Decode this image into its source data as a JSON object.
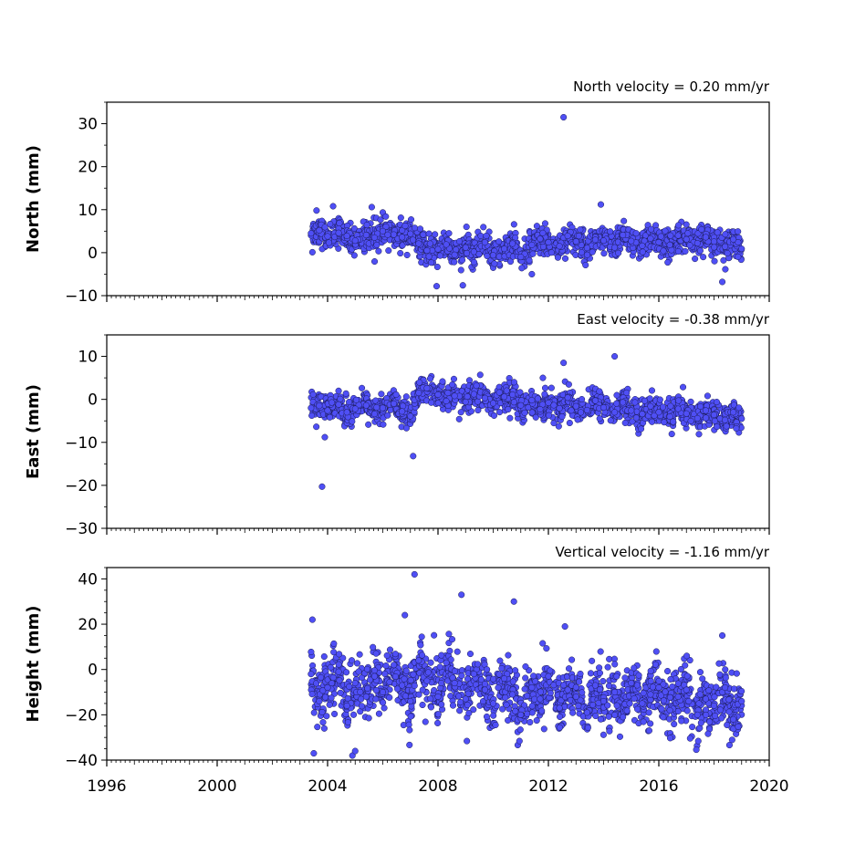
{
  "chart_data": [
    {
      "type": "scatter",
      "title": "North velocity = 0.20 mm/yr",
      "xlabel": "",
      "ylabel": "North (mm)",
      "xlim": [
        1996,
        2020
      ],
      "ylim": [
        -10,
        35
      ],
      "yticks": [
        -10,
        0,
        10,
        20,
        30
      ],
      "ytick_labels": [
        "−10",
        "0",
        "10",
        "20",
        "30"
      ],
      "series": [
        {
          "x": [
            2003.4,
            2003.7,
            2004.0,
            2004.4,
            2004.7,
            2005.0,
            2005.4,
            2005.7,
            2006.0,
            2006.4,
            2006.7,
            2007.0,
            2007.3,
            2007.6,
            2008.0,
            2008.3,
            2008.6,
            2009.0,
            2009.3,
            2009.7,
            2010.0,
            2010.4,
            2010.7,
            2011.0,
            2011.4,
            2011.7,
            2012.0,
            2012.4,
            2012.7,
            2013.0,
            2013.4,
            2013.7,
            2014.0,
            2014.4,
            2014.7,
            2015.0,
            2015.4,
            2015.7,
            2016.0,
            2016.4,
            2016.7,
            2017.0,
            2017.4,
            2017.7,
            2018.0,
            2018.4,
            2018.7,
            2019.0,
            2012.55,
            2013.9,
            2007.95,
            2008.9,
            2018.3,
            2003.6,
            2005.6,
            2011.4,
            2003.45,
            2004.2
          ],
          "y": [
            4.5,
            5.2,
            3.8,
            4.6,
            3.9,
            2.8,
            4.1,
            3.5,
            5.0,
            4.2,
            3.6,
            4.4,
            2.1,
            0.5,
            0.8,
            1.9,
            -0.5,
            1.2,
            0.2,
            2.4,
            -0.6,
            0.9,
            2.1,
            -1.0,
            1.8,
            3.2,
            2.4,
            1.5,
            3.9,
            2.6,
            1.1,
            3.0,
            2.8,
            1.2,
            4.1,
            2.7,
            1.6,
            3.3,
            2.4,
            1.8,
            4.0,
            3.1,
            2.2,
            3.6,
            2.6,
            1.4,
            3.1,
            0.9,
            31.5,
            11.2,
            -7.8,
            -7.6,
            -6.8,
            9.8,
            10.6,
            -5.0,
            0.1,
            10.8
          ]
        }
      ]
    },
    {
      "type": "scatter",
      "title": "East velocity = -0.38 mm/yr",
      "xlabel": "",
      "ylabel": "East (mm)",
      "xlim": [
        1996,
        2020
      ],
      "ylim": [
        -30,
        15
      ],
      "yticks": [
        -30,
        -20,
        -10,
        0,
        10
      ],
      "ytick_labels": [
        "−30",
        "−20",
        "−10",
        "0",
        "10"
      ],
      "series": [
        {
          "x": [
            2003.4,
            2003.7,
            2004.0,
            2004.4,
            2004.7,
            2005.0,
            2005.4,
            2005.7,
            2006.0,
            2006.4,
            2006.7,
            2007.0,
            2007.3,
            2007.6,
            2008.0,
            2008.3,
            2008.6,
            2009.0,
            2009.3,
            2009.7,
            2010.0,
            2010.4,
            2010.7,
            2011.0,
            2011.4,
            2011.7,
            2012.0,
            2012.4,
            2012.7,
            2013.0,
            2013.4,
            2013.7,
            2014.0,
            2014.4,
            2014.7,
            2015.0,
            2015.4,
            2015.7,
            2016.0,
            2016.4,
            2016.7,
            2017.0,
            2017.4,
            2017.7,
            2018.0,
            2018.4,
            2018.7,
            2019.0,
            2003.8,
            2007.1,
            2014.4,
            2012.55,
            2011.8,
            2003.9
          ],
          "y": [
            -2.0,
            -1.5,
            -2.6,
            -1.2,
            -3.0,
            -2.2,
            -1.4,
            -3.4,
            -2.0,
            -1.0,
            -2.8,
            -3.9,
            1.5,
            2.6,
            1.1,
            -0.4,
            0.8,
            -0.6,
            1.2,
            0.3,
            -0.9,
            0.6,
            1.1,
            -1.4,
            -0.2,
            -2.3,
            -0.8,
            -2.1,
            0.4,
            -1.6,
            -2.5,
            -0.3,
            -1.9,
            -3.0,
            -0.7,
            -2.6,
            -3.4,
            -1.6,
            -3.0,
            -4.0,
            -2.2,
            -3.3,
            -4.4,
            -2.6,
            -3.6,
            -4.8,
            -3.0,
            -4.5,
            -20.3,
            -13.2,
            10.0,
            8.5,
            5.0,
            -8.8
          ]
        }
      ]
    },
    {
      "type": "scatter",
      "title": "Vertical velocity = -1.16 mm/yr",
      "xlabel": "",
      "ylabel": "Height (mm)",
      "xlim": [
        1996,
        2020
      ],
      "ylim": [
        -40,
        45
      ],
      "yticks": [
        -40,
        -20,
        0,
        20,
        40
      ],
      "ytick_labels": [
        "−40",
        "−20",
        "0",
        "20",
        "40"
      ],
      "xticks": [
        1996,
        2000,
        2004,
        2008,
        2012,
        2016,
        2020
      ],
      "xtick_labels": [
        "1996",
        "2000",
        "2004",
        "2008",
        "2012",
        "2016",
        "2020"
      ],
      "series": [
        {
          "x": [
            2003.4,
            2003.7,
            2004.0,
            2004.4,
            2004.7,
            2005.0,
            2005.4,
            2005.7,
            2006.0,
            2006.4,
            2006.7,
            2007.0,
            2007.3,
            2007.6,
            2008.0,
            2008.3,
            2008.6,
            2009.0,
            2009.3,
            2009.7,
            2010.0,
            2010.4,
            2010.7,
            2011.0,
            2011.4,
            2011.7,
            2012.0,
            2012.4,
            2012.7,
            2013.0,
            2013.4,
            2013.7,
            2014.0,
            2014.4,
            2014.7,
            2015.0,
            2015.4,
            2015.7,
            2016.0,
            2016.4,
            2016.7,
            2017.0,
            2017.4,
            2017.7,
            2018.0,
            2018.4,
            2018.7,
            2019.0,
            2007.15,
            2008.85,
            2010.75,
            2003.45,
            2004.9,
            2018.3,
            2003.5,
            2006.8,
            2012.6,
            2005.0
          ],
          "y": [
            -2,
            -14,
            -8,
            -1,
            -16,
            -6,
            -12,
            -3,
            -10,
            2,
            -7,
            -14,
            4,
            -5,
            -12,
            3,
            -6,
            -13,
            -2,
            -9,
            -15,
            -4,
            -11,
            -20,
            -8,
            -13,
            -3,
            -17,
            -9,
            -12,
            -19,
            -7,
            -14,
            -10,
            -21,
            -6,
            -15,
            -11,
            -8,
            -18,
            -12,
            -9,
            -20,
            -13,
            -16,
            -8,
            -22,
            -14,
            42,
            33,
            30,
            22,
            -38,
            15,
            -37,
            24,
            19,
            -36
          ]
        }
      ]
    }
  ]
}
